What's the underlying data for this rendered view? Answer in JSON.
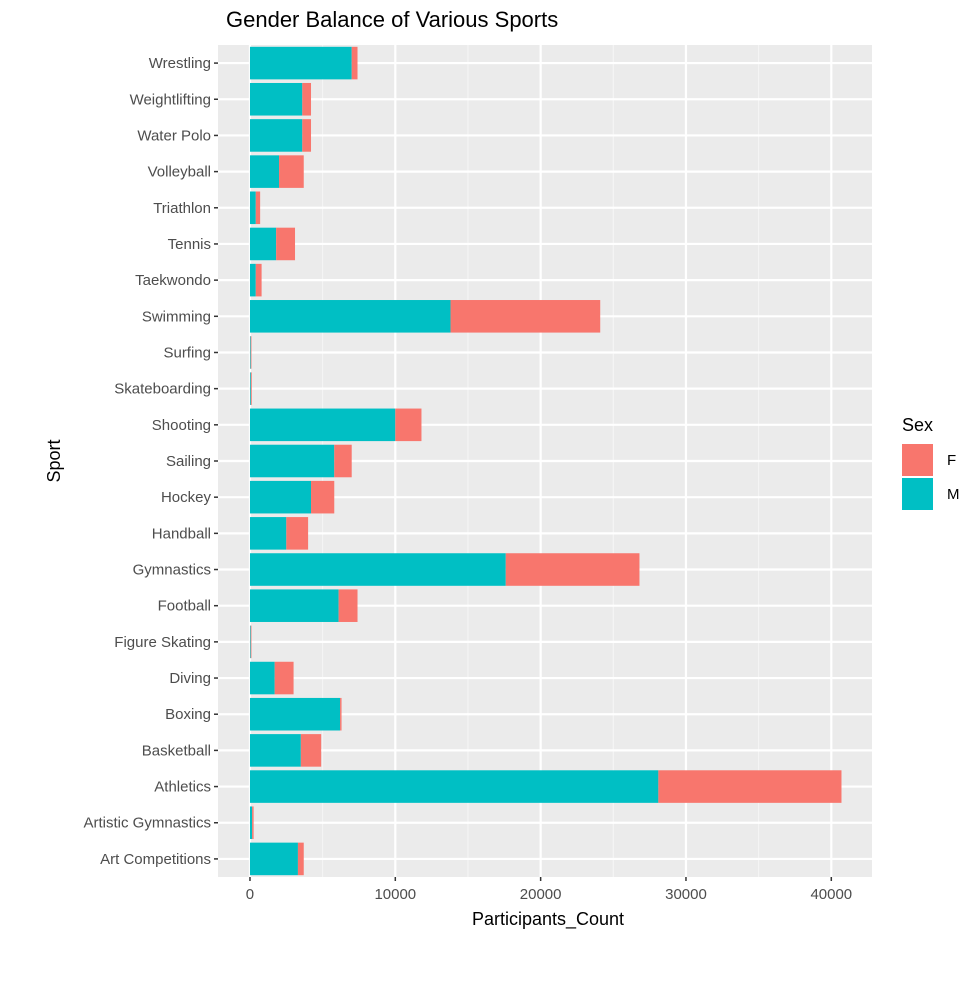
{
  "chart_data": {
    "type": "bar",
    "orientation": "horizontal",
    "stacked": true,
    "title": "Gender Balance of Various Sports",
    "xlabel": "Participants_Count",
    "ylabel": "Sport",
    "xlim": [
      -2200,
      42800
    ],
    "xticks": [
      0,
      10000,
      20000,
      30000,
      40000
    ],
    "xtick_labels": [
      "0",
      "10000",
      "20000",
      "30000",
      "40000"
    ],
    "grid": true,
    "legend_position": "right",
    "legend_title": "Sex",
    "categories": [
      "Wrestling",
      "Weightlifting",
      "Water Polo",
      "Volleyball",
      "Triathlon",
      "Tennis",
      "Taekwondo",
      "Swimming",
      "Surfing",
      "Skateboarding",
      "Shooting",
      "Sailing",
      "Hockey",
      "Handball",
      "Gymnastics",
      "Football",
      "Figure Skating",
      "Diving",
      "Boxing",
      "Basketball",
      "Athletics",
      "Artistic Gymnastics",
      "Art Competitions"
    ],
    "series": [
      {
        "name": "M",
        "color": "#00BFC4",
        "values": [
          7000,
          3600,
          3600,
          2000,
          400,
          1800,
          400,
          13800,
          50,
          60,
          10000,
          5800,
          4200,
          2500,
          17600,
          6100,
          50,
          1700,
          6200,
          3500,
          28100,
          150,
          3300
        ]
      },
      {
        "name": "F",
        "color": "#F8766D",
        "values": [
          400,
          600,
          600,
          1700,
          300,
          1300,
          400,
          10300,
          50,
          60,
          1800,
          1200,
          1600,
          1500,
          9200,
          1300,
          50,
          1300,
          100,
          1400,
          12600,
          100,
          400
        ]
      }
    ],
    "legend_order": [
      "F",
      "M"
    ]
  },
  "colors": {
    "panel_bg": "#EBEBEB",
    "grid_major": "#FFFFFF",
    "female": "#F8766D",
    "male": "#00BFC4"
  }
}
